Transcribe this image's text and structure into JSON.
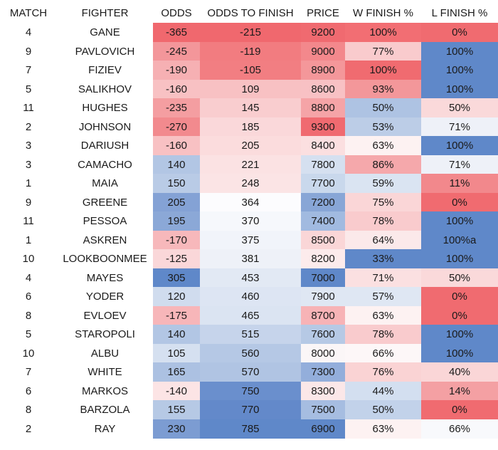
{
  "chart_data": {
    "type": "table",
    "columns": [
      "MATCH",
      "FIGHTER",
      "ODDS",
      "ODDS TO FINISH",
      "PRICE",
      "W FINISH %",
      "L FINISH %"
    ],
    "rows": [
      [
        "4",
        "GANE",
        "-365",
        "-215",
        "9200",
        "100%",
        "0%"
      ],
      [
        "9",
        "PAVLOVICH",
        "-245",
        "-119",
        "9000",
        "77%",
        "100%"
      ],
      [
        "7",
        "FIZIEV",
        "-190",
        "-105",
        "8900",
        "100%",
        "100%"
      ],
      [
        "5",
        "SALIKHOV",
        "-160",
        "109",
        "8600",
        "93%",
        "100%"
      ],
      [
        "11",
        "HUGHES",
        "-235",
        "145",
        "8800",
        "50%",
        "50%"
      ],
      [
        "2",
        "JOHNSON",
        "-270",
        "185",
        "9300",
        "53%",
        "71%"
      ],
      [
        "3",
        "DARIUSH",
        "-160",
        "205",
        "8400",
        "63%",
        "100%"
      ],
      [
        "3",
        "CAMACHO",
        "140",
        "221",
        "7800",
        "86%",
        "71%"
      ],
      [
        "1",
        "MAIA",
        "150",
        "248",
        "7700",
        "59%",
        "11%"
      ],
      [
        "9",
        "GREENE",
        "205",
        "364",
        "7200",
        "75%",
        "0%"
      ],
      [
        "11",
        "PESSOA",
        "195",
        "370",
        "7400",
        "78%",
        "100%"
      ],
      [
        "1",
        "ASKREN",
        "-170",
        "375",
        "8500",
        "64%",
        "100%a"
      ],
      [
        "10",
        "LOOKBOONMEE",
        "-125",
        "381",
        "8200",
        "33%",
        "100%"
      ],
      [
        "4",
        "MAYES",
        "305",
        "453",
        "7000",
        "71%",
        "50%"
      ],
      [
        "6",
        "YODER",
        "120",
        "460",
        "7900",
        "57%",
        "0%"
      ],
      [
        "8",
        "EVLOEV",
        "-175",
        "465",
        "8700",
        "63%",
        "0%"
      ],
      [
        "5",
        "STAROPOLI",
        "140",
        "515",
        "7600",
        "78%",
        "100%"
      ],
      [
        "10",
        "ALBU",
        "105",
        "560",
        "8000",
        "66%",
        "100%"
      ],
      [
        "7",
        "WHITE",
        "165",
        "570",
        "7300",
        "76%",
        "40%"
      ],
      [
        "6",
        "MARKOS",
        "-140",
        "750",
        "8300",
        "44%",
        "14%"
      ],
      [
        "8",
        "BARZOLA",
        "155",
        "770",
        "7500",
        "50%",
        "0%"
      ],
      [
        "2",
        "RAY",
        "230",
        "785",
        "6900",
        "63%",
        "66%"
      ]
    ],
    "cell_colors": [
      [
        null,
        null,
        "#f0686e",
        "#f0686e",
        "#f06a70",
        "#f26e73",
        "#f06b70"
      ],
      [
        null,
        null,
        "#f3969a",
        "#f27c80",
        "#f3888c",
        "#f9cbcd",
        "#5f88c9"
      ],
      [
        null,
        null,
        "#f6b0b3",
        "#f27e82",
        "#f4979a",
        "#f06b70",
        "#5f88c9"
      ],
      [
        null,
        null,
        "#f8c1c3",
        "#f8c1c3",
        "#f8c1c4",
        "#f3979a",
        "#5f88c9"
      ],
      [
        null,
        null,
        "#f49ea1",
        "#f9cdcf",
        "#f5a4a7",
        "#aec3e3",
        "#fad9da"
      ],
      [
        null,
        null,
        "#f28a8e",
        "#fad8da",
        "#f06a70",
        "#bccde7",
        "#eef1f8"
      ],
      [
        null,
        null,
        "#f8c1c3",
        "#fbdcdd",
        "#fbdfe0",
        "#fdf2f2",
        "#5f88c9"
      ],
      [
        null,
        null,
        "#b2c6e4",
        "#fbe2e3",
        "#d5e0f0",
        "#f5a8ab",
        "#eef1f8"
      ],
      [
        null,
        null,
        "#b9cbe6",
        "#fbe4e5",
        "#c9d8ec",
        "#dae4f2",
        "#f2888c"
      ],
      [
        null,
        null,
        "#84a2d5",
        "#fcfcfe",
        "#88a6d6",
        "#fad6d7",
        "#f06b70"
      ],
      [
        null,
        null,
        "#8ba8d7",
        "#f6f8fc",
        "#a1bae0",
        "#f9cbcd",
        "#5f88c9"
      ],
      [
        null,
        null,
        "#f7b8bb",
        "#f1f4fa",
        "#fad6d7",
        "#fbe9ea",
        "#5f88c9"
      ],
      [
        null,
        null,
        "#fad7d9",
        "#eef1f8",
        "#fcebec",
        "#5f88c9",
        "#5f88c9"
      ],
      [
        null,
        null,
        "#5f88c9",
        "#e2e9f4",
        "#5f88c9",
        "#fbe0e1",
        "#fad9da"
      ],
      [
        null,
        null,
        "#d0dcee",
        "#dde5f3",
        "#dfe7f3",
        "#dfe7f3",
        "#f06b70"
      ],
      [
        null,
        null,
        "#f7b6b9",
        "#dbe4f2",
        "#f7b3b6",
        "#fdf2f2",
        "#f06b70"
      ],
      [
        null,
        null,
        "#b2c6e4",
        "#c6d4eb",
        "#b6c9e5",
        "#f9cbcd",
        "#5f88c9"
      ],
      [
        null,
        null,
        "#d5e0f0",
        "#b5c8e5",
        "#fbf6f7",
        "#fdf7f8",
        "#5f88c9"
      ],
      [
        null,
        null,
        "#acc1e2",
        "#b0c4e3",
        "#93aedb",
        "#fad3d4",
        "#fad6d7"
      ],
      [
        null,
        null,
        "#fce4e5",
        "#6a8fcd",
        "#fbe7e8",
        "#d3dff0",
        "#f4a0a3"
      ],
      [
        null,
        null,
        "#b6c9e5",
        "#6389ca",
        "#a6bde1",
        "#c2d2ea",
        "#f06b70"
      ],
      [
        null,
        null,
        "#7c9cd2",
        "#5f88c9",
        "#5f88c9",
        "#fdf2f2",
        "#f8f9fc"
      ]
    ]
  }
}
